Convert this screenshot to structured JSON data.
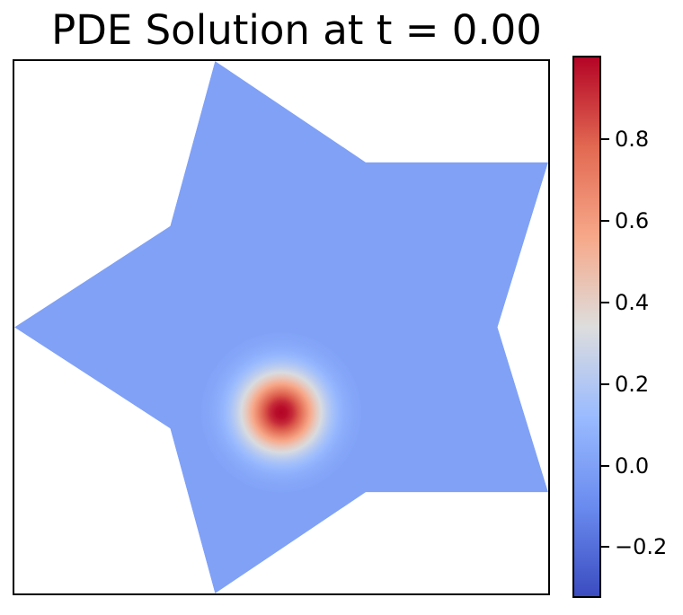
{
  "chart_data": {
    "type": "heatmap",
    "title": "PDE Solution at t = 0.00",
    "xlabel": "",
    "ylabel": "",
    "x_ticks": [],
    "y_ticks": [],
    "domain": "five-pointed star",
    "colormap": "coolwarm",
    "colorbar": {
      "range": [
        -0.32,
        1.0
      ],
      "ticks": [
        {
          "value": -0.2,
          "label": "−0.2"
        },
        {
          "value": 0.0,
          "label": "0.0"
        },
        {
          "value": 0.2,
          "label": "0.2"
        },
        {
          "value": 0.4,
          "label": "0.4"
        },
        {
          "value": 0.6,
          "label": "0.6"
        },
        {
          "value": 0.8,
          "label": "0.8"
        }
      ],
      "stops": [
        "#3b4cc0",
        "#6a8bef",
        "#9abbff",
        "#dddddd",
        "#f7a889",
        "#e26952",
        "#b40426"
      ]
    },
    "background_value": 0.0,
    "peak": {
      "value": 1.0,
      "x": 0.5,
      "y": 0.34,
      "width": 0.05
    },
    "star_vertices": [
      [
        0.376,
        1.0
      ],
      [
        0.658,
        0.81
      ],
      [
        1.0,
        0.81
      ],
      [
        0.905,
        0.5
      ],
      [
        1.0,
        0.19
      ],
      [
        0.658,
        0.19
      ],
      [
        0.376,
        0.0
      ],
      [
        0.292,
        0.31
      ],
      [
        0.0,
        0.5
      ],
      [
        0.292,
        0.69
      ]
    ]
  }
}
